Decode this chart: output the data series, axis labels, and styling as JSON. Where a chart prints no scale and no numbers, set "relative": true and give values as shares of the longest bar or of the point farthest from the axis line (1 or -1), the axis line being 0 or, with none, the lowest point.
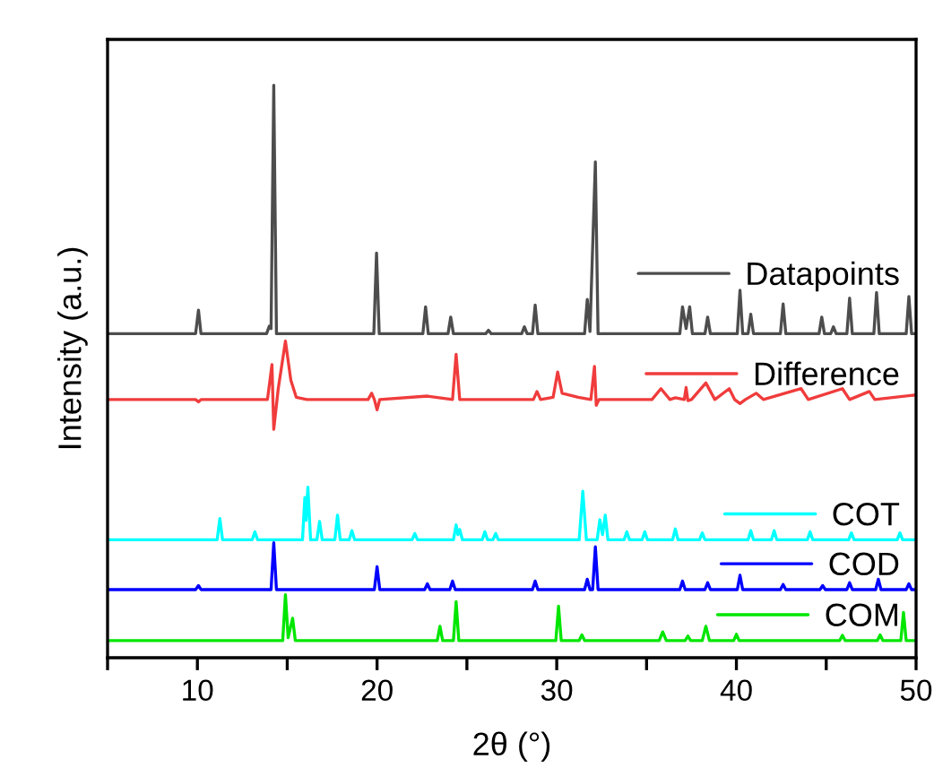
{
  "chart_data": {
    "type": "line",
    "relative": true,
    "xlabel": "2θ (°)",
    "ylabel": "Intensity (a.u.)",
    "xlim": [
      5,
      50
    ],
    "xticks": [
      {
        "value": 5,
        "label": null
      },
      10,
      {
        "value": 15,
        "label": null
      },
      20,
      {
        "value": 25,
        "label": null
      },
      30,
      {
        "value": 35,
        "label": null
      },
      40,
      {
        "value": 45,
        "label": null
      },
      50
    ],
    "grid": false,
    "legend": "right",
    "marker": "none",
    "line_style": "solid",
    "series": [
      {
        "name": "Datapoints",
        "color": "#4d4d4d",
        "x": [
          5,
          9.9,
          10.06,
          10.2,
          13.85,
          14.0,
          14.1,
          14.25,
          14.4,
          19.82,
          19.97,
          20.12,
          22.55,
          22.7,
          22.85,
          23.95,
          24.1,
          24.25,
          26.05,
          26.2,
          26.35,
          28.05,
          28.2,
          28.35,
          28.65,
          28.8,
          28.95,
          31.55,
          31.7,
          31.85,
          32.15,
          32.3,
          36.85,
          37.0,
          37.2,
          37.4,
          37.55,
          38.25,
          38.4,
          38.55,
          40.05,
          40.2,
          40.35,
          40.65,
          40.8,
          40.95,
          42.45,
          42.6,
          42.75,
          44.6,
          44.75,
          44.9,
          45.25,
          45.4,
          45.55,
          46.15,
          46.3,
          46.45,
          47.65,
          47.8,
          47.95,
          49.45,
          49.6,
          49.75,
          50
        ],
        "values": [
          0.566,
          0.566,
          0.607,
          0.566,
          0.566,
          0.579,
          0.575,
          1.0,
          0.566,
          0.566,
          0.707,
          0.566,
          0.566,
          0.613,
          0.566,
          0.566,
          0.595,
          0.566,
          0.566,
          0.572,
          0.566,
          0.566,
          0.578,
          0.566,
          0.566,
          0.616,
          0.566,
          0.566,
          0.626,
          0.57,
          0.866,
          0.566,
          0.566,
          0.613,
          0.575,
          0.613,
          0.566,
          0.566,
          0.595,
          0.566,
          0.566,
          0.642,
          0.566,
          0.566,
          0.6,
          0.566,
          0.566,
          0.618,
          0.566,
          0.566,
          0.595,
          0.566,
          0.566,
          0.578,
          0.566,
          0.566,
          0.628,
          0.566,
          0.566,
          0.638,
          0.566,
          0.566,
          0.631,
          0.566,
          0.566
        ]
      },
      {
        "name": "Difference",
        "color": "#f03c3c",
        "x": [
          5,
          9.9,
          10.06,
          10.2,
          13.9,
          14.15,
          14.25,
          14.5,
          14.9,
          15.2,
          15.5,
          16.1,
          19.5,
          19.7,
          19.85,
          20.0,
          20.15,
          22.8,
          24.2,
          24.4,
          24.6,
          28.7,
          28.9,
          29.1,
          29.8,
          30.05,
          30.3,
          31.2,
          31.9,
          32.1,
          32.2,
          32.35,
          35.3,
          35.8,
          36.3,
          36.6,
          37.1,
          37.2,
          37.3,
          37.5,
          38.3,
          38.8,
          39.6,
          39.9,
          40.2,
          40.5,
          41.1,
          41.5,
          43.6,
          44,
          45.9,
          46.3,
          47.4,
          47.7,
          50
        ],
        "values": [
          0.451,
          0.451,
          0.447,
          0.451,
          0.451,
          0.512,
          0.399,
          0.47,
          0.553,
          0.485,
          0.455,
          0.451,
          0.451,
          0.462,
          0.451,
          0.433,
          0.451,
          0.457,
          0.451,
          0.53,
          0.451,
          0.451,
          0.465,
          0.451,
          0.455,
          0.499,
          0.462,
          0.455,
          0.451,
          0.509,
          0.441,
          0.451,
          0.451,
          0.47,
          0.451,
          0.454,
          0.451,
          0.472,
          0.449,
          0.451,
          0.48,
          0.451,
          0.47,
          0.451,
          0.444,
          0.451,
          0.462,
          0.451,
          0.47,
          0.451,
          0.47,
          0.451,
          0.465,
          0.451,
          0.459
        ]
      },
      {
        "name": "COT",
        "color": "#00ffff",
        "x": [
          5,
          11.1,
          11.25,
          11.4,
          13.05,
          13.2,
          13.35,
          15.85,
          15.98,
          16.05,
          16.15,
          16.3,
          16.65,
          16.8,
          16.95,
          17.65,
          17.8,
          17.95,
          18.45,
          18.6,
          18.75,
          21.95,
          22.1,
          22.25,
          24.25,
          24.4,
          24.5,
          24.6,
          24.75,
          25.85,
          26.0,
          26.15,
          26.45,
          26.6,
          26.75,
          31.25,
          31.45,
          31.65,
          32.25,
          32.4,
          32.55,
          32.7,
          32.85,
          33.75,
          33.9,
          34.05,
          34.75,
          34.9,
          35.05,
          36.45,
          36.6,
          36.75,
          37.95,
          38.1,
          38.25,
          40.65,
          40.8,
          40.95,
          41.95,
          42.1,
          42.25,
          43.95,
          44.1,
          44.25,
          46.25,
          46.4,
          46.55,
          48.95,
          49.1,
          49.25,
          50
        ],
        "values": [
          0.206,
          0.206,
          0.243,
          0.206,
          0.206,
          0.22,
          0.206,
          0.206,
          0.28,
          0.24,
          0.298,
          0.206,
          0.206,
          0.238,
          0.206,
          0.206,
          0.249,
          0.206,
          0.206,
          0.222,
          0.206,
          0.206,
          0.217,
          0.206,
          0.206,
          0.232,
          0.215,
          0.224,
          0.206,
          0.206,
          0.22,
          0.206,
          0.206,
          0.217,
          0.206,
          0.206,
          0.291,
          0.206,
          0.206,
          0.241,
          0.215,
          0.249,
          0.206,
          0.206,
          0.22,
          0.206,
          0.206,
          0.22,
          0.206,
          0.206,
          0.225,
          0.206,
          0.206,
          0.218,
          0.206,
          0.206,
          0.222,
          0.206,
          0.206,
          0.222,
          0.206,
          0.206,
          0.22,
          0.206,
          0.206,
          0.218,
          0.206,
          0.206,
          0.218,
          0.206,
          0.206
        ]
      },
      {
        "name": "COD",
        "color": "#0000ff",
        "x": [
          5,
          9.9,
          10.06,
          10.2,
          14.1,
          14.25,
          14.4,
          19.85,
          20.0,
          20.15,
          22.65,
          22.8,
          22.95,
          24.05,
          24.2,
          24.35,
          28.65,
          28.8,
          28.95,
          31.55,
          31.7,
          31.85,
          32.0,
          32.15,
          32.3,
          36.85,
          37.0,
          37.15,
          38.25,
          38.4,
          38.55,
          40.05,
          40.2,
          40.35,
          42.45,
          42.6,
          42.75,
          44.65,
          44.8,
          44.95,
          46.15,
          46.3,
          46.45,
          47.75,
          47.9,
          48.05,
          49.45,
          49.6,
          49.75,
          50
        ],
        "values": [
          0.119,
          0.119,
          0.126,
          0.119,
          0.119,
          0.201,
          0.119,
          0.119,
          0.159,
          0.119,
          0.119,
          0.129,
          0.119,
          0.119,
          0.134,
          0.119,
          0.119,
          0.134,
          0.119,
          0.119,
          0.137,
          0.119,
          0.119,
          0.194,
          0.119,
          0.119,
          0.134,
          0.119,
          0.119,
          0.131,
          0.119,
          0.119,
          0.144,
          0.119,
          0.119,
          0.128,
          0.119,
          0.119,
          0.126,
          0.119,
          0.119,
          0.131,
          0.119,
          0.119,
          0.137,
          0.119,
          0.119,
          0.129,
          0.119,
          0.119
        ]
      },
      {
        "name": "COM",
        "color": "#00e600",
        "x": [
          5,
          14.75,
          14.9,
          15.05,
          15.3,
          15.45,
          23.35,
          23.5,
          23.65,
          24.25,
          24.4,
          24.55,
          29.95,
          30.1,
          30.25,
          31.25,
          31.4,
          31.55,
          35.7,
          35.9,
          36.1,
          37.15,
          37.3,
          37.45,
          38.1,
          38.3,
          38.5,
          39.85,
          40.0,
          40.15,
          45.75,
          45.9,
          46.05,
          47.85,
          48.0,
          48.15,
          49.15,
          49.3,
          49.45,
          50
        ],
        "values": [
          0.03,
          0.03,
          0.11,
          0.035,
          0.069,
          0.03,
          0.03,
          0.055,
          0.03,
          0.03,
          0.098,
          0.03,
          0.03,
          0.09,
          0.03,
          0.03,
          0.04,
          0.03,
          0.03,
          0.045,
          0.03,
          0.03,
          0.038,
          0.03,
          0.03,
          0.055,
          0.03,
          0.03,
          0.041,
          0.03,
          0.03,
          0.039,
          0.03,
          0.03,
          0.04,
          0.03,
          0.03,
          0.079,
          0.03,
          0.03
        ]
      }
    ]
  }
}
